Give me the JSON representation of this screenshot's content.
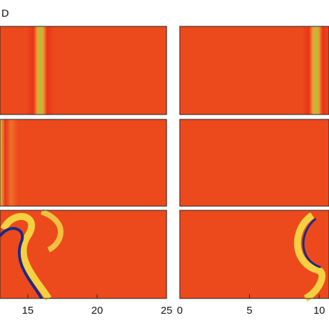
{
  "chart_data": [
    {
      "type": "heatmap",
      "title": "D",
      "xlim": [
        13,
        25
      ],
      "xticks": [
        15,
        20,
        25
      ]
    },
    {
      "type": "heatmap",
      "xlim": [
        0,
        10.7
      ],
      "xticks": [
        0,
        5,
        10
      ]
    }
  ]
}
